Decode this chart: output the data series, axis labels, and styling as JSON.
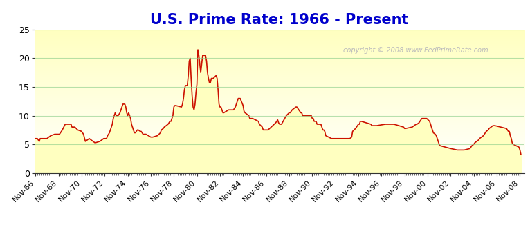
{
  "title": "U.S. Prime Rate: 1966 - Present",
  "title_color": "#0000cc",
  "title_fontsize": 15,
  "copyright_text": "copyright © 2008 www.FedPrimeRate.com",
  "background_color": "#ffffff",
  "plot_bg_top": "#ffffff",
  "plot_bg_bottom": "#ffffc0",
  "fill_color": "#ffffd0",
  "line_color": "#cc1100",
  "line_width": 1.2,
  "grid_color": "#88cc88",
  "grid_alpha": 0.6,
  "ylim": [
    0,
    25
  ],
  "yticks": [
    0,
    5,
    10,
    15,
    20,
    25
  ],
  "x_labels": [
    "Nov-66",
    "Nov-68",
    "Nov-70",
    "Nov-72",
    "Nov-74",
    "Nov-76",
    "Nov-78",
    "Nov-80",
    "Nov-82",
    "Nov-84",
    "Nov-86",
    "Nov-88",
    "Nov-90",
    "Nov-92",
    "Nov-94",
    "Nov-96",
    "Nov-98",
    "Nov-00",
    "Nov-02",
    "Nov-04",
    "Nov-06",
    "Nov-08"
  ],
  "xlim_start": [
    1966,
    10,
    1
  ],
  "xlim_end": [
    2009,
    4,
    1
  ],
  "data": [
    [
      1966,
      11,
      6.0
    ],
    [
      1967,
      1,
      6.0
    ],
    [
      1967,
      3,
      5.5
    ],
    [
      1967,
      4,
      6.0
    ],
    [
      1967,
      11,
      6.0
    ],
    [
      1968,
      3,
      6.5
    ],
    [
      1968,
      7,
      6.75
    ],
    [
      1968,
      12,
      6.75
    ],
    [
      1969,
      1,
      7.0
    ],
    [
      1969,
      3,
      7.5
    ],
    [
      1969,
      6,
      8.5
    ],
    [
      1969,
      12,
      8.5
    ],
    [
      1970,
      1,
      8.0
    ],
    [
      1970,
      4,
      8.0
    ],
    [
      1970,
      7,
      7.5
    ],
    [
      1970,
      11,
      7.25
    ],
    [
      1971,
      1,
      6.75
    ],
    [
      1971,
      3,
      5.5
    ],
    [
      1971,
      7,
      6.0
    ],
    [
      1971,
      11,
      5.5
    ],
    [
      1972,
      1,
      5.25
    ],
    [
      1972,
      6,
      5.5
    ],
    [
      1972,
      10,
      6.0
    ],
    [
      1973,
      1,
      6.0
    ],
    [
      1973,
      2,
      6.5
    ],
    [
      1973,
      4,
      7.0
    ],
    [
      1973,
      5,
      7.5
    ],
    [
      1973,
      6,
      8.0
    ],
    [
      1973,
      7,
      8.5
    ],
    [
      1973,
      8,
      9.5
    ],
    [
      1973,
      9,
      10.0
    ],
    [
      1973,
      10,
      10.5
    ],
    [
      1973,
      11,
      10.0
    ],
    [
      1973,
      12,
      10.0
    ],
    [
      1974,
      1,
      10.0
    ],
    [
      1974,
      3,
      10.5
    ],
    [
      1974,
      4,
      11.0
    ],
    [
      1974,
      5,
      11.5
    ],
    [
      1974,
      6,
      12.0
    ],
    [
      1974,
      7,
      12.0
    ],
    [
      1974,
      8,
      12.0
    ],
    [
      1974,
      9,
      11.5
    ],
    [
      1974,
      10,
      10.5
    ],
    [
      1974,
      11,
      10.0
    ],
    [
      1974,
      12,
      10.5
    ],
    [
      1975,
      1,
      10.0
    ],
    [
      1975,
      2,
      9.5
    ],
    [
      1975,
      3,
      8.5
    ],
    [
      1975,
      5,
      7.5
    ],
    [
      1975,
      6,
      7.0
    ],
    [
      1975,
      7,
      7.0
    ],
    [
      1975,
      9,
      7.5
    ],
    [
      1975,
      10,
      7.5
    ],
    [
      1975,
      12,
      7.25
    ],
    [
      1976,
      1,
      7.25
    ],
    [
      1976,
      3,
      6.75
    ],
    [
      1976,
      6,
      6.75
    ],
    [
      1976,
      11,
      6.25
    ],
    [
      1977,
      1,
      6.25
    ],
    [
      1977,
      6,
      6.5
    ],
    [
      1977,
      9,
      7.0
    ],
    [
      1977,
      10,
      7.5
    ],
    [
      1977,
      12,
      7.75
    ],
    [
      1978,
      1,
      8.0
    ],
    [
      1978,
      5,
      8.5
    ],
    [
      1978,
      7,
      9.0
    ],
    [
      1978,
      8,
      9.0
    ],
    [
      1978,
      9,
      9.5
    ],
    [
      1978,
      10,
      10.0
    ],
    [
      1978,
      11,
      11.5
    ],
    [
      1978,
      12,
      11.75
    ],
    [
      1979,
      1,
      11.75
    ],
    [
      1979,
      7,
      11.5
    ],
    [
      1979,
      8,
      12.0
    ],
    [
      1979,
      9,
      13.0
    ],
    [
      1979,
      10,
      14.5
    ],
    [
      1979,
      11,
      15.25
    ],
    [
      1979,
      12,
      15.25
    ],
    [
      1980,
      1,
      15.25
    ],
    [
      1980,
      2,
      17.0
    ],
    [
      1980,
      3,
      19.5
    ],
    [
      1980,
      4,
      20.0
    ],
    [
      1980,
      5,
      16.5
    ],
    [
      1980,
      6,
      13.5
    ],
    [
      1980,
      7,
      11.5
    ],
    [
      1980,
      8,
      11.0
    ],
    [
      1980,
      9,
      12.0
    ],
    [
      1980,
      10,
      14.0
    ],
    [
      1980,
      11,
      15.5
    ],
    [
      1980,
      12,
      21.5
    ],
    [
      1981,
      1,
      20.5
    ],
    [
      1981,
      3,
      17.5
    ],
    [
      1981,
      5,
      20.5
    ],
    [
      1981,
      6,
      20.5
    ],
    [
      1981,
      7,
      20.5
    ],
    [
      1981,
      8,
      20.5
    ],
    [
      1981,
      9,
      19.5
    ],
    [
      1981,
      10,
      17.5
    ],
    [
      1981,
      11,
      16.5
    ],
    [
      1981,
      12,
      15.75
    ],
    [
      1982,
      1,
      15.75
    ],
    [
      1982,
      2,
      16.5
    ],
    [
      1982,
      4,
      16.5
    ],
    [
      1982,
      7,
      17.0
    ],
    [
      1982,
      8,
      16.5
    ],
    [
      1982,
      9,
      14.5
    ],
    [
      1982,
      10,
      12.0
    ],
    [
      1982,
      11,
      11.5
    ],
    [
      1982,
      12,
      11.5
    ],
    [
      1983,
      1,
      11.0
    ],
    [
      1983,
      2,
      10.5
    ],
    [
      1983,
      3,
      10.5
    ],
    [
      1983,
      8,
      11.0
    ],
    [
      1983,
      10,
      11.0
    ],
    [
      1983,
      12,
      11.0
    ],
    [
      1984,
      1,
      11.0
    ],
    [
      1984,
      3,
      11.5
    ],
    [
      1984,
      4,
      12.0
    ],
    [
      1984,
      5,
      12.5
    ],
    [
      1984,
      6,
      13.0
    ],
    [
      1984,
      8,
      13.0
    ],
    [
      1984,
      11,
      11.75
    ],
    [
      1984,
      12,
      10.75
    ],
    [
      1985,
      1,
      10.5
    ],
    [
      1985,
      5,
      10.0
    ],
    [
      1985,
      6,
      9.5
    ],
    [
      1985,
      9,
      9.5
    ],
    [
      1986,
      3,
      9.0
    ],
    [
      1986,
      4,
      8.5
    ],
    [
      1986,
      7,
      8.0
    ],
    [
      1986,
      8,
      7.5
    ],
    [
      1986,
      12,
      7.5
    ],
    [
      1987,
      1,
      7.5
    ],
    [
      1987,
      9,
      8.75
    ],
    [
      1987,
      11,
      9.25
    ],
    [
      1987,
      12,
      8.75
    ],
    [
      1988,
      1,
      8.5
    ],
    [
      1988,
      3,
      8.5
    ],
    [
      1988,
      8,
      10.0
    ],
    [
      1988,
      11,
      10.5
    ],
    [
      1988,
      12,
      10.5
    ],
    [
      1989,
      2,
      11.0
    ],
    [
      1989,
      6,
      11.5
    ],
    [
      1989,
      7,
      11.5
    ],
    [
      1989,
      11,
      10.5
    ],
    [
      1989,
      12,
      10.5
    ],
    [
      1990,
      1,
      10.0
    ],
    [
      1990,
      7,
      10.0
    ],
    [
      1990,
      10,
      10.0
    ],
    [
      1990,
      11,
      9.5
    ],
    [
      1990,
      12,
      9.5
    ],
    [
      1991,
      1,
      9.0
    ],
    [
      1991,
      2,
      9.0
    ],
    [
      1991,
      3,
      9.0
    ],
    [
      1991,
      4,
      8.5
    ],
    [
      1991,
      8,
      8.5
    ],
    [
      1991,
      9,
      8.0
    ],
    [
      1991,
      10,
      7.5
    ],
    [
      1991,
      11,
      7.5
    ],
    [
      1991,
      12,
      7.25
    ],
    [
      1992,
      1,
      6.5
    ],
    [
      1992,
      7,
      6.0
    ],
    [
      1992,
      9,
      6.0
    ],
    [
      1993,
      7,
      6.0
    ],
    [
      1994,
      2,
      6.0
    ],
    [
      1994,
      4,
      6.25
    ],
    [
      1994,
      5,
      7.25
    ],
    [
      1994,
      8,
      7.75
    ],
    [
      1994,
      11,
      8.5
    ],
    [
      1994,
      12,
      8.5
    ],
    [
      1995,
      1,
      9.0
    ],
    [
      1995,
      2,
      9.0
    ],
    [
      1995,
      7,
      8.75
    ],
    [
      1995,
      12,
      8.5
    ],
    [
      1996,
      1,
      8.25
    ],
    [
      1996,
      6,
      8.25
    ],
    [
      1997,
      3,
      8.5
    ],
    [
      1997,
      12,
      8.5
    ],
    [
      1998,
      10,
      8.0
    ],
    [
      1998,
      11,
      7.75
    ],
    [
      1998,
      12,
      7.75
    ],
    [
      1999,
      7,
      8.0
    ],
    [
      1999,
      9,
      8.25
    ],
    [
      1999,
      11,
      8.5
    ],
    [
      1999,
      12,
      8.5
    ],
    [
      2000,
      2,
      8.75
    ],
    [
      2000,
      3,
      9.0
    ],
    [
      2000,
      5,
      9.5
    ],
    [
      2000,
      6,
      9.5
    ],
    [
      2000,
      10,
      9.5
    ],
    [
      2001,
      1,
      9.0
    ],
    [
      2001,
      2,
      8.5
    ],
    [
      2001,
      3,
      8.0
    ],
    [
      2001,
      4,
      7.5
    ],
    [
      2001,
      5,
      7.0
    ],
    [
      2001,
      7,
      6.75
    ],
    [
      2001,
      8,
      6.5
    ],
    [
      2001,
      9,
      6.0
    ],
    [
      2001,
      10,
      5.5
    ],
    [
      2001,
      11,
      5.0
    ],
    [
      2001,
      12,
      4.75
    ],
    [
      2002,
      11,
      4.25
    ],
    [
      2003,
      6,
      4.0
    ],
    [
      2004,
      1,
      4.0
    ],
    [
      2004,
      7,
      4.25
    ],
    [
      2004,
      9,
      4.75
    ],
    [
      2004,
      11,
      5.0
    ],
    [
      2004,
      12,
      5.25
    ],
    [
      2005,
      2,
      5.5
    ],
    [
      2005,
      4,
      5.75
    ],
    [
      2005,
      5,
      6.0
    ],
    [
      2005,
      7,
      6.25
    ],
    [
      2005,
      9,
      6.5
    ],
    [
      2005,
      11,
      7.0
    ],
    [
      2005,
      12,
      7.25
    ],
    [
      2006,
      2,
      7.5
    ],
    [
      2006,
      3,
      7.75
    ],
    [
      2006,
      5,
      8.0
    ],
    [
      2006,
      7,
      8.25
    ],
    [
      2006,
      9,
      8.25
    ],
    [
      2007,
      9,
      7.75
    ],
    [
      2007,
      10,
      7.5
    ],
    [
      2007,
      11,
      7.25
    ],
    [
      2007,
      12,
      7.25
    ],
    [
      2008,
      1,
      6.5
    ],
    [
      2008,
      2,
      6.0
    ],
    [
      2008,
      3,
      5.25
    ],
    [
      2008,
      4,
      5.0
    ],
    [
      2008,
      10,
      4.5
    ],
    [
      2008,
      11,
      4.0
    ],
    [
      2008,
      12,
      3.25
    ]
  ]
}
